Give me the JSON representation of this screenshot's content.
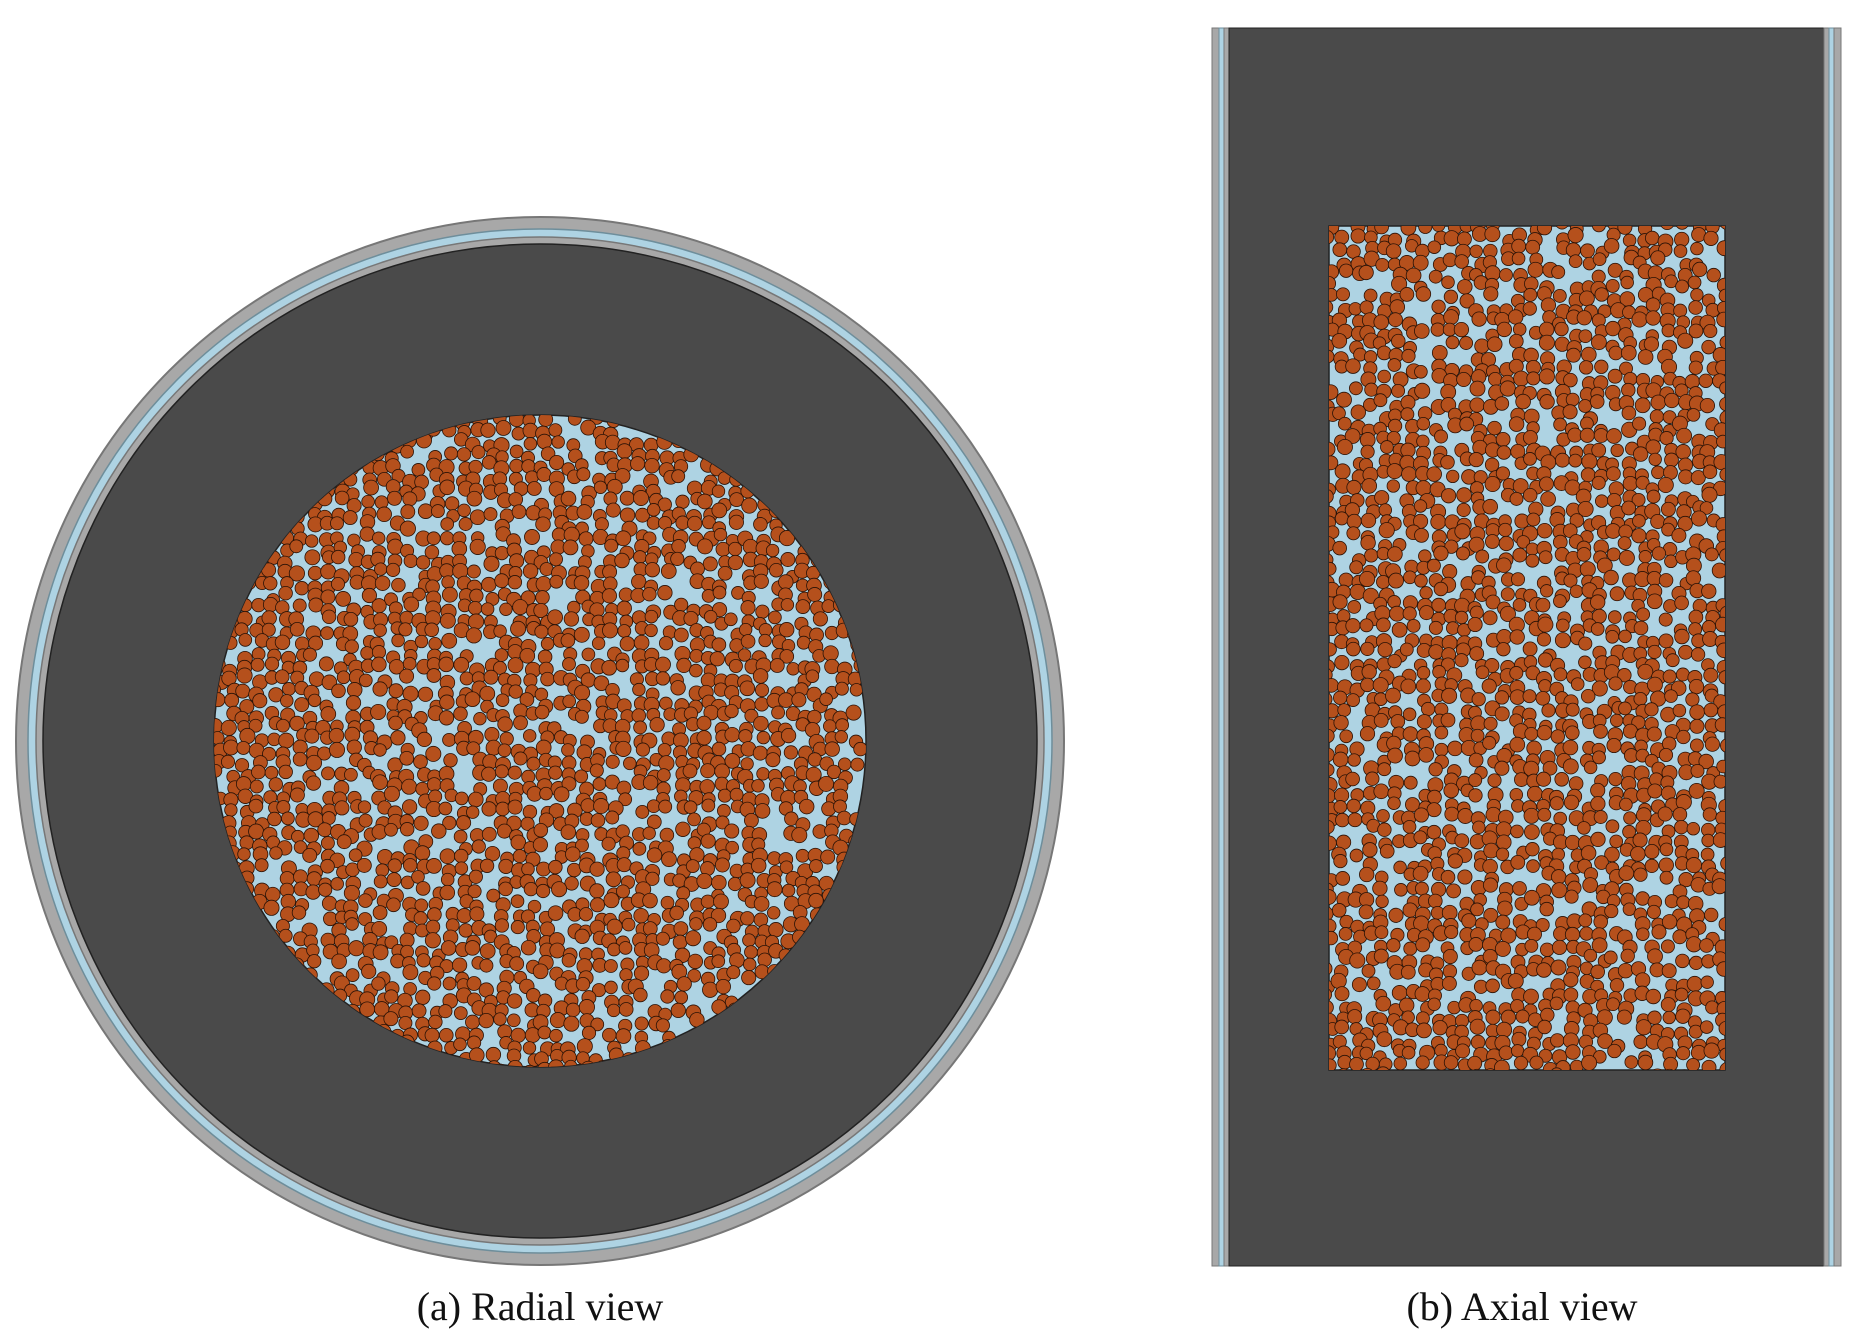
{
  "figure": {
    "panels": [
      {
        "id": "a",
        "caption": "(a) Radial view"
      },
      {
        "id": "b",
        "caption": "(b) Axial view"
      }
    ]
  },
  "colors": {
    "reflector": "#4a4a4a",
    "outer_vessel": "#a8a8a8",
    "coolant": "#aed3e3",
    "fuel_pebble": "#b5501c",
    "pebble_outline": "#2a1206",
    "background": "#ffffff"
  }
}
